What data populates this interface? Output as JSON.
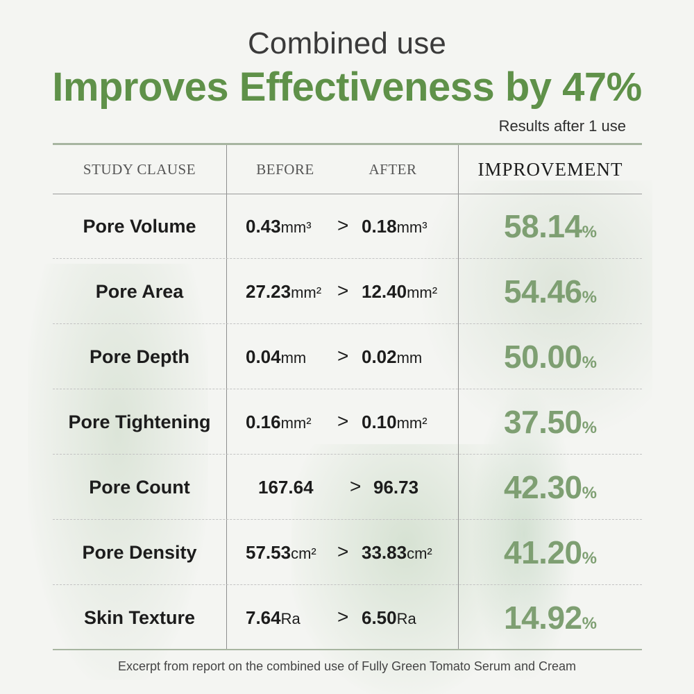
{
  "header": {
    "subtitle": "Combined use",
    "headline": "Improves Effectiveness by 47%",
    "results_note": "Results after 1 use"
  },
  "table": {
    "columns": {
      "clause": "STUDY CLAUSE",
      "before": "BEFORE",
      "after": "AFTER",
      "improvement": "IMPROVEMENT"
    },
    "rows": [
      {
        "clause": "Pore Volume",
        "before": "0.43",
        "before_unit": "mm³",
        "arrow": ">",
        "after": "0.18",
        "after_unit": "mm³",
        "improvement": "58.14",
        "pct": "%"
      },
      {
        "clause": "Pore Area",
        "before": "27.23",
        "before_unit": "mm²",
        "arrow": ">",
        "after": "12.40",
        "after_unit": "mm²",
        "improvement": "54.46",
        "pct": "%"
      },
      {
        "clause": "Pore Depth",
        "before": "0.04",
        "before_unit": "mm",
        "arrow": ">",
        "after": "0.02",
        "after_unit": "mm",
        "improvement": "50.00",
        "pct": "%"
      },
      {
        "clause": "Pore Tightening",
        "before": "0.16",
        "before_unit": "mm²",
        "arrow": ">",
        "after": "0.10",
        "after_unit": "mm²",
        "improvement": "37.50",
        "pct": "%"
      },
      {
        "clause": "Pore Count",
        "before": "167.64",
        "before_unit": "",
        "arrow": ">",
        "after": "96.73",
        "after_unit": "",
        "improvement": "42.30",
        "pct": "%"
      },
      {
        "clause": "Pore Density",
        "before": "57.53",
        "before_unit": "cm²",
        "arrow": ">",
        "after": "33.83",
        "after_unit": "cm²",
        "improvement": "41.20",
        "pct": "%"
      },
      {
        "clause": "Skin Texture",
        "before": "7.64",
        "before_unit": "Ra",
        "arrow": ">",
        "after": "6.50",
        "after_unit": "Ra",
        "improvement": "14.92",
        "pct": "%"
      }
    ]
  },
  "footer": {
    "note": "Excerpt from report on the combined use of Fully Green Tomato Serum and Cream"
  },
  "colors": {
    "headline": "#5f9149",
    "improvement": "#7e9f72",
    "rule": "#a7b5a0"
  }
}
